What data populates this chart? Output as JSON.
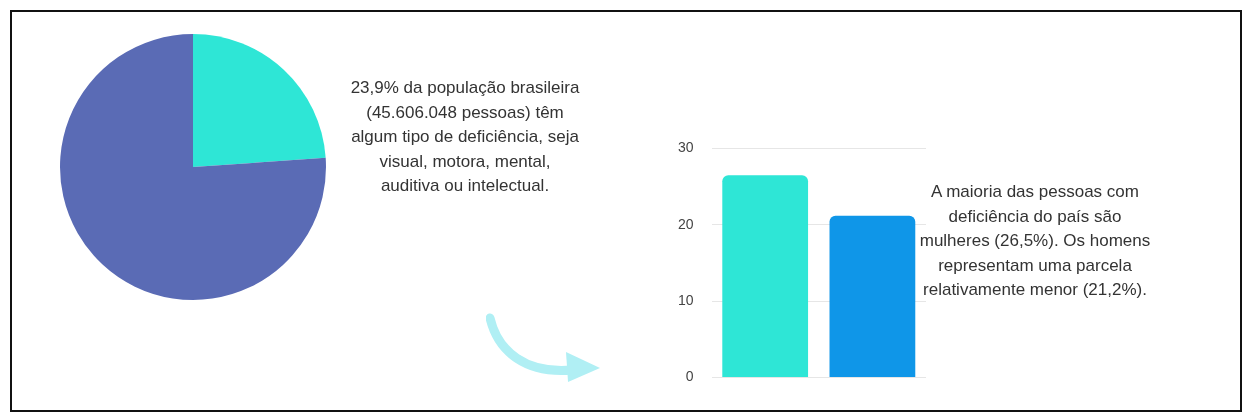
{
  "chart_data": [
    {
      "type": "pie",
      "categories": [
        null,
        null
      ],
      "values": [
        23.9,
        76.1
      ],
      "colors": [
        "#2ee6d6",
        "#5a6bb5"
      ],
      "legend": false,
      "annotations": [
        "23,9% da população brasileira (45.606.048 pessoas) têm algum tipo de deficiência, seja visual, motora, mental, auditiva ou intelectual."
      ]
    },
    {
      "type": "bar",
      "categories": [
        null,
        null
      ],
      "values": [
        26.5,
        21.2
      ],
      "colors": [
        "#2ee6d6",
        "#0f96e8"
      ],
      "ylim": [
        0,
        30
      ],
      "yticks": [
        0,
        10,
        20,
        30
      ],
      "grid": "y",
      "legend": false,
      "tick_labels": "y",
      "annotations": [
        "A maioria das pessoas com deficiência do país são mulheres (26,5%). Os homens representam uma parcela relativamente menor (21,2%)."
      ]
    }
  ]
}
